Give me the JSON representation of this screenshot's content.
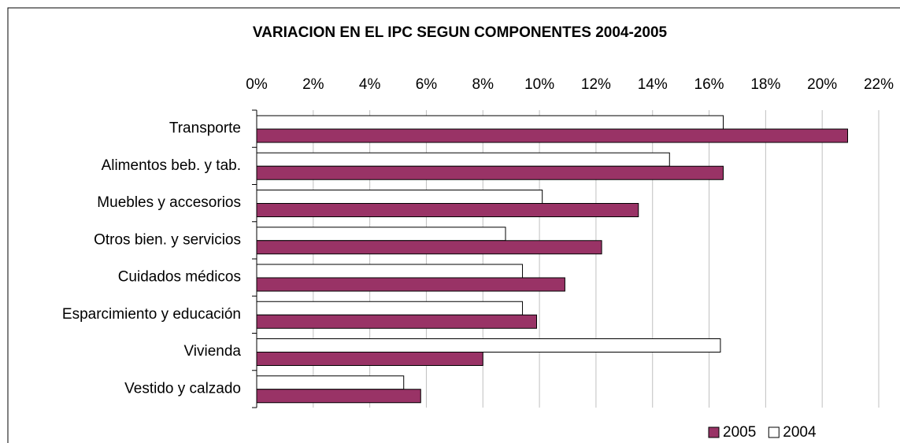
{
  "chart_data": {
    "type": "hbar",
    "title": "VARIACION EN EL IPC SEGUN COMPONENTES 2004-2005",
    "categories": [
      "Transporte",
      "Alimentos beb. y tab.",
      "Muebles y accesorios",
      "Otros bien. y servicios",
      "Cuidados médicos",
      "Esparcimiento y educación",
      "Vivienda",
      "Vestido y calzado"
    ],
    "series": [
      {
        "name": "2005",
        "color": "#993366",
        "values": [
          20.9,
          16.5,
          13.5,
          12.2,
          10.9,
          9.9,
          8.0,
          5.8
        ]
      },
      {
        "name": "2004",
        "color": "#ffffff",
        "values": [
          16.5,
          14.6,
          10.1,
          8.8,
          9.4,
          9.4,
          16.4,
          5.2
        ]
      }
    ],
    "xlim": [
      0,
      22
    ],
    "xticks": [
      {
        "value": 0,
        "label": "0%"
      },
      {
        "value": 2,
        "label": "2%"
      },
      {
        "value": 4,
        "label": "4%"
      },
      {
        "value": 6,
        "label": "6%"
      },
      {
        "value": 8,
        "label": "8%"
      },
      {
        "value": 10,
        "label": "10%"
      },
      {
        "value": 12,
        "label": "12%"
      },
      {
        "value": 14,
        "label": "14%"
      },
      {
        "value": 16,
        "label": "16%"
      },
      {
        "value": 18,
        "label": "18%"
      },
      {
        "value": 20,
        "label": "20%"
      },
      {
        "value": 22,
        "label": "22%"
      }
    ],
    "grid": true,
    "legend": "bottom-right"
  }
}
